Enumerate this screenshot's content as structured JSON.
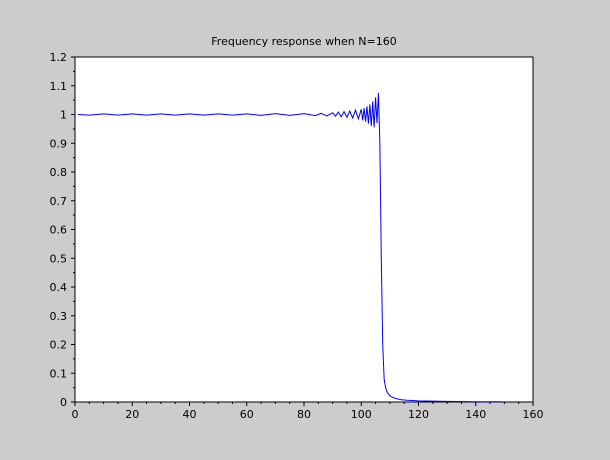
{
  "chart_data": {
    "type": "line",
    "title": "Frequency response when N=160",
    "xlabel": "",
    "ylabel": "",
    "xlim": [
      0,
      160
    ],
    "ylim": [
      0,
      1.2
    ],
    "x_ticks": [
      0,
      20,
      40,
      60,
      80,
      100,
      120,
      140,
      160
    ],
    "x_tick_labels": [
      "0",
      "20",
      "40",
      "60",
      "80",
      "100",
      "120",
      "140",
      "160"
    ],
    "y_ticks": [
      0,
      0.1,
      0.2,
      0.3,
      0.4,
      0.5,
      0.6,
      0.7,
      0.8,
      0.9,
      1,
      1.1,
      1.2
    ],
    "y_tick_labels": [
      "0",
      "0.1",
      "0.2",
      "0.3",
      "0.4",
      "0.5",
      "0.6",
      "0.7",
      "0.8",
      "0.9",
      "1",
      "1.1",
      "1.2"
    ],
    "grid": false,
    "colors": {
      "background": "#cccccc",
      "plot_area": "#ffffff",
      "line": "#0000ff",
      "axis": "#000000"
    },
    "series": [
      {
        "color": "#0000ff",
        "x": [
          1,
          5,
          10,
          15,
          20,
          25,
          30,
          35,
          40,
          45,
          50,
          55,
          60,
          65,
          70,
          75,
          80,
          84,
          86,
          88,
          90,
          91,
          92,
          93,
          94,
          95,
          96,
          97,
          98,
          99,
          100,
          100.5,
          101,
          101.5,
          102,
          102.5,
          103,
          103.5,
          104,
          104.5,
          105,
          105.5,
          106,
          106.5,
          107,
          107.5,
          108,
          108.5,
          109,
          109.5,
          110,
          111,
          112,
          114,
          116,
          120,
          125,
          130,
          140,
          149
        ],
        "y": [
          1.0,
          0.998,
          1.002,
          0.998,
          1.002,
          0.998,
          1.002,
          0.998,
          1.002,
          0.998,
          1.002,
          0.998,
          1.002,
          0.997,
          1.003,
          0.997,
          1.003,
          0.996,
          1.004,
          0.995,
          1.006,
          0.994,
          1.008,
          0.992,
          1.01,
          0.99,
          1.012,
          0.988,
          1.015,
          0.985,
          1.018,
          0.98,
          1.022,
          0.975,
          1.028,
          0.968,
          1.035,
          0.96,
          1.045,
          0.955,
          1.06,
          0.97,
          1.075,
          0.9,
          0.5,
          0.2,
          0.08,
          0.05,
          0.035,
          0.028,
          0.022,
          0.016,
          0.012,
          0.008,
          0.006,
          0.004,
          0.003,
          0.002,
          0.001,
          0.001
        ]
      }
    ]
  }
}
